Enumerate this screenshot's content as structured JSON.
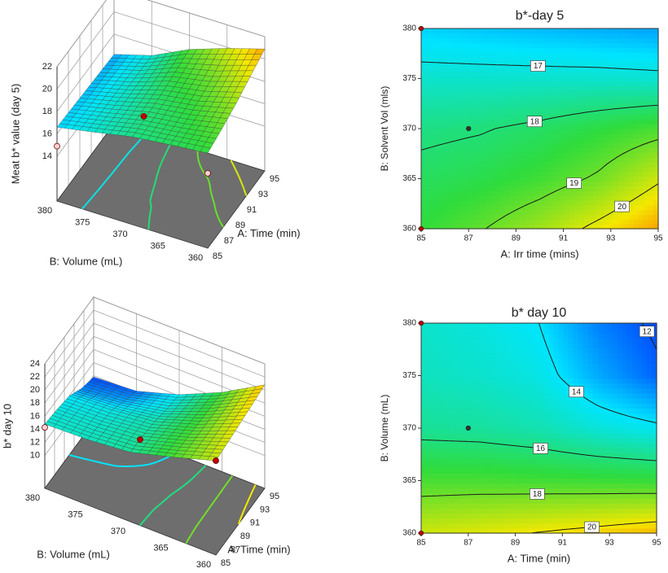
{
  "chart_data": [
    {
      "type": "surface3d",
      "z_label": "Meat b* value (day 5)",
      "x_label": "A: Time (min)",
      "y_label": "B: Volume (mL)",
      "x": [
        85,
        87.5,
        90,
        92.5,
        95
      ],
      "y": [
        360,
        365,
        370,
        375,
        380
      ],
      "z": [
        [
          18.5,
          18.95,
          19.5,
          20.2,
          20.9
        ],
        [
          18.2,
          18.35,
          18.65,
          19.1,
          19.9
        ],
        [
          17.85,
          17.95,
          18.15,
          18.45,
          18.75
        ],
        [
          17.2,
          17.2,
          17.2,
          17.2,
          17.15
        ],
        [
          16.6,
          16.5,
          16.4,
          16.3,
          16.2
        ]
      ],
      "xlim": [
        85,
        95
      ],
      "ylim": [
        360,
        380
      ],
      "zlim": [
        10,
        22
      ],
      "xticks": [
        85,
        87,
        89,
        91,
        93,
        95
      ],
      "yticks": [
        360,
        365,
        370,
        375,
        380
      ],
      "zticks": [
        14,
        16,
        18,
        20,
        22
      ],
      "color_range": [
        15,
        22
      ],
      "colormap": [
        "#0010ff",
        "#00e5ff",
        "#2fdc3c",
        "#f5e800",
        "#ff2a00"
      ],
      "contour_levels": [
        16,
        17,
        18,
        19,
        20
      ],
      "points": {
        "x": [
          85,
          87,
          85
        ],
        "y": [
          380,
          370,
          360
        ],
        "z": [
          14.9,
          18.3,
          16.7
        ],
        "colors": [
          "#ffd0d0",
          "#c00000",
          "#ffd0d0"
        ]
      }
    },
    {
      "type": "contour",
      "title": "b*-day 5",
      "x_label": "A: Irr time (mins)",
      "y_label": "B: Solvent Vol (mls)",
      "x": [
        85,
        87.5,
        90,
        92.5,
        95
      ],
      "y": [
        360,
        365,
        370,
        375,
        380
      ],
      "z": [
        [
          18.5,
          18.95,
          19.5,
          20.2,
          20.9
        ],
        [
          18.2,
          18.35,
          18.65,
          19.1,
          19.9
        ],
        [
          17.85,
          17.95,
          18.15,
          18.45,
          18.75
        ],
        [
          17.2,
          17.2,
          17.2,
          17.2,
          17.15
        ],
        [
          16.6,
          16.5,
          16.4,
          16.3,
          16.2
        ]
      ],
      "xlim": [
        85,
        95
      ],
      "ylim": [
        360,
        380
      ],
      "xticks": [
        85,
        87,
        89,
        91,
        93,
        95
      ],
      "yticks": [
        360,
        365,
        370,
        375,
        380
      ],
      "levels": [
        17,
        18,
        19,
        20
      ],
      "color_range": [
        15,
        22
      ],
      "colormap": [
        "#0010ff",
        "#00e5ff",
        "#2fdc3c",
        "#f5e800",
        "#ff2a00"
      ],
      "points": {
        "x": [
          85,
          85,
          87
        ],
        "y": [
          380,
          360,
          370
        ],
        "colors": [
          "#c00000",
          "#c00000",
          "#333333"
        ]
      }
    },
    {
      "type": "surface3d",
      "z_label": "b* day 10",
      "x_label": "A: Time (min)",
      "y_label": "B: Volume (mL)",
      "x": [
        85,
        87.5,
        90,
        92.5,
        95
      ],
      "y": [
        360,
        365,
        370,
        375,
        380
      ],
      "z": [
        [
          19.4,
          19.7,
          20.05,
          20.4,
          20.8
        ],
        [
          17.4,
          17.4,
          17.3,
          17.2,
          17.1
        ],
        [
          15.6,
          15.5,
          15.2,
          14.6,
          14.2
        ],
        [
          15.0,
          14.8,
          14.4,
          13.2,
          12.2
        ],
        [
          14.8,
          14.5,
          14.0,
          12.6,
          11.8
        ]
      ],
      "xlim": [
        85,
        95
      ],
      "ylim": [
        360,
        380
      ],
      "zlim": [
        5,
        24
      ],
      "xticks": [
        85,
        87,
        89,
        91,
        93,
        95
      ],
      "yticks": [
        360,
        365,
        370,
        375,
        380
      ],
      "zticks": [
        10,
        12,
        14,
        16,
        18,
        20,
        22,
        24
      ],
      "color_range": [
        11,
        23
      ],
      "colormap": [
        "#0010ff",
        "#00e5ff",
        "#2fdc3c",
        "#f5e800",
        "#ff2a00"
      ],
      "contour_levels": [
        12,
        14,
        16,
        18,
        20
      ],
      "points": {
        "x": [
          85,
          87,
          85
        ],
        "y": [
          380,
          370,
          360
        ],
        "z": [
          14.3,
          15.5,
          19.4
        ],
        "colors": [
          "#ffd0d0",
          "#c00000",
          "#c00000"
        ]
      }
    },
    {
      "type": "contour",
      "title": "b* day 10",
      "x_label": "A: Time (min)",
      "y_label": "B: Volume (mL)",
      "x": [
        85,
        87.5,
        90,
        92.5,
        95
      ],
      "y": [
        360,
        365,
        370,
        375,
        380
      ],
      "z": [
        [
          19.4,
          19.7,
          20.05,
          20.4,
          20.8
        ],
        [
          17.4,
          17.4,
          17.3,
          17.2,
          17.1
        ],
        [
          15.6,
          15.5,
          15.2,
          14.6,
          14.2
        ],
        [
          15.0,
          14.8,
          14.4,
          13.2,
          12.2
        ],
        [
          14.8,
          14.5,
          14.0,
          12.6,
          11.8
        ]
      ],
      "xlim": [
        85,
        95
      ],
      "ylim": [
        360,
        380
      ],
      "xticks": [
        85,
        87,
        89,
        91,
        93,
        95
      ],
      "yticks": [
        360,
        365,
        370,
        375,
        380
      ],
      "levels": [
        12,
        14,
        16,
        18,
        20
      ],
      "color_range": [
        11,
        23
      ],
      "colormap": [
        "#0010ff",
        "#00e5ff",
        "#2fdc3c",
        "#f5e800",
        "#ff2a00"
      ],
      "points": {
        "x": [
          85,
          85,
          87
        ],
        "y": [
          380,
          360,
          370
        ],
        "colors": [
          "#c00000",
          "#c00000",
          "#333333"
        ]
      }
    }
  ]
}
